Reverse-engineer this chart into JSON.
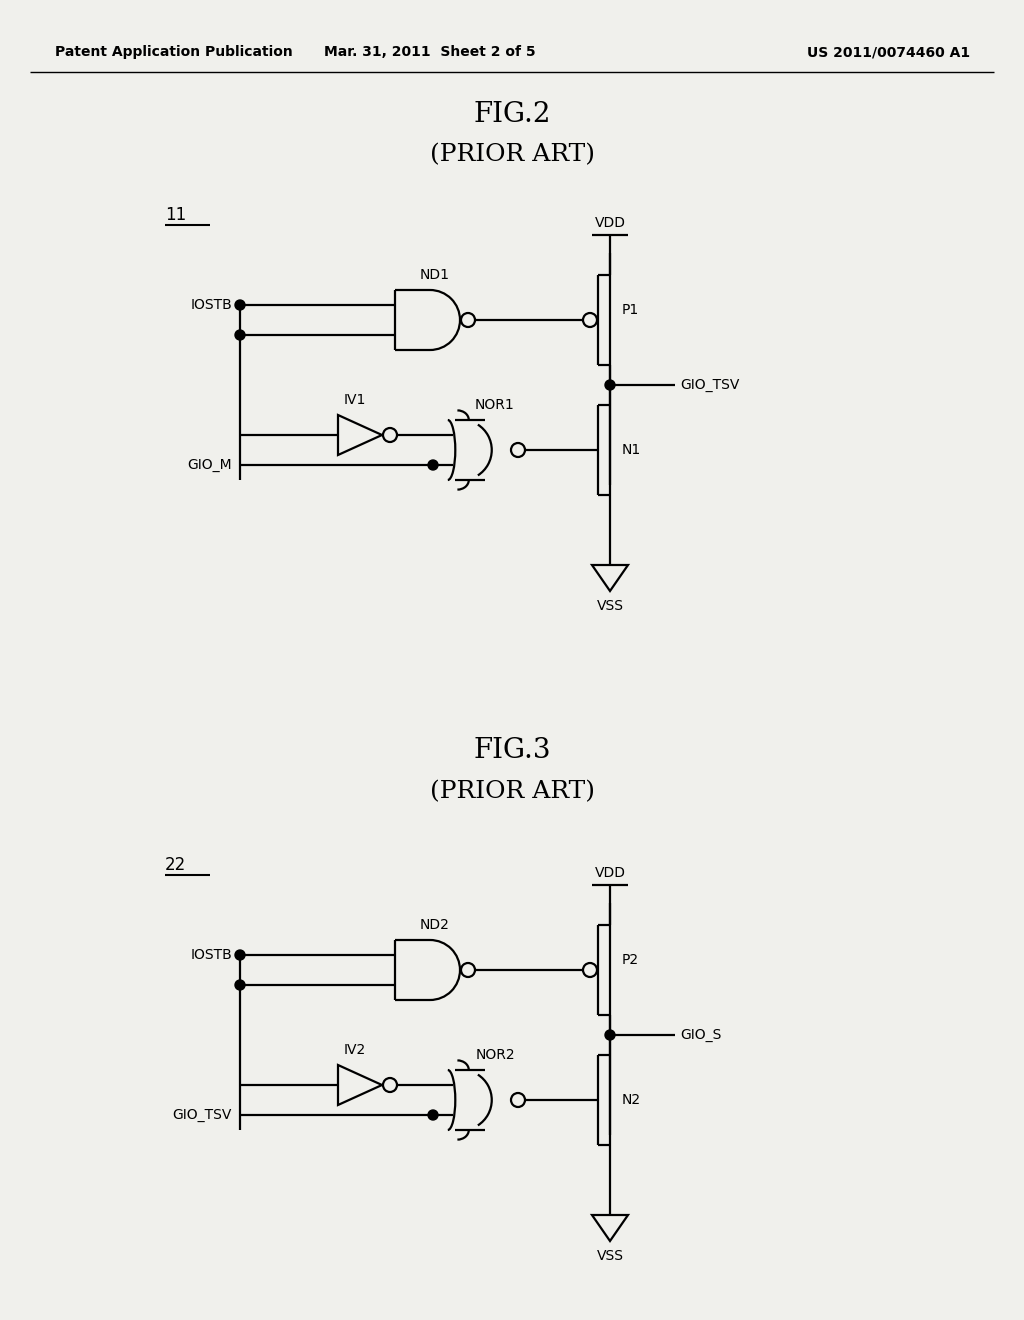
{
  "bg_color": "#f0f0ec",
  "header_left": "Patent Application Publication",
  "header_mid": "Mar. 31, 2011  Sheet 2 of 5",
  "header_right": "US 2011/0074460 A1",
  "fig2_title": "FIG.2",
  "fig2_subtitle": "(PRIOR ART)",
  "fig3_title": "FIG.3",
  "fig3_subtitle": "(PRIOR ART)",
  "fig2_label": "11",
  "fig3_label": "22",
  "lw": 1.6,
  "fs_header": 10,
  "fs_title": 20,
  "fs_subtitle": 18,
  "fs_label": 10,
  "fs_ref": 12
}
